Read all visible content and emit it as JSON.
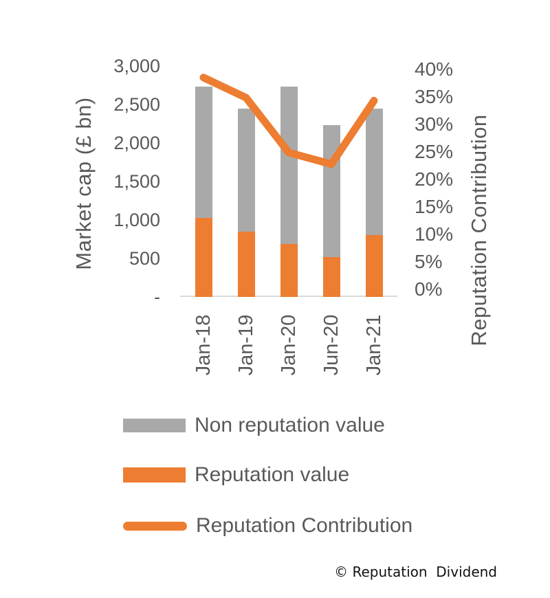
{
  "chart_data": {
    "type": "combo-stacked-bar-line",
    "categories": [
      "Jan-18",
      "Jan-19",
      "Jan-20",
      "Jun-20",
      "Jan-21"
    ],
    "series": [
      {
        "name": "Non reputation value",
        "type": "bar",
        "stack": true,
        "color": "#A9A9A9",
        "values": [
          1700,
          1600,
          2040,
          1710,
          1650
        ]
      },
      {
        "name": "Reputation value",
        "type": "bar",
        "stack": true,
        "color": "#ED7D31",
        "values": [
          1030,
          850,
          690,
          520,
          800
        ]
      },
      {
        "name": "Reputation Contribution",
        "type": "line",
        "axis": "right",
        "color": "#ED7D31",
        "values": [
          38,
          34.5,
          25,
          23,
          34
        ]
      }
    ],
    "market_cap_totals": [
      2730,
      2450,
      2730,
      2230,
      2450
    ],
    "left_axis": {
      "label": "Market cap (£ bn)",
      "min": 0,
      "max": 3000,
      "ticks": [
        "3,000",
        "2,500",
        "2,000",
        "1,500",
        "1,000",
        "500",
        "-"
      ]
    },
    "right_axis": {
      "label": "Reputation Contribution",
      "min": 0,
      "max": 40,
      "ticks": [
        "40%",
        "35%",
        "30%",
        "25%",
        "20%",
        "15%",
        "10%",
        "5%",
        "0%"
      ]
    },
    "grid": false,
    "legend_position": "bottom-left"
  },
  "legend": {
    "items": [
      {
        "label": "Non reputation value",
        "color": "#A9A9A9",
        "marker": "bar"
      },
      {
        "label": "Reputation value",
        "color": "#ED7D31",
        "marker": "bar"
      },
      {
        "label": "Reputation Contribution",
        "color": "#ED7D31",
        "marker": "line"
      }
    ]
  },
  "footer": {
    "copyright": "© Reputation  Dividend"
  }
}
